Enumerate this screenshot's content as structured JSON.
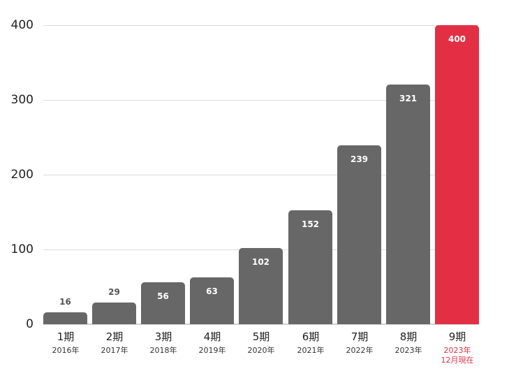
{
  "chart_data": {
    "type": "bar",
    "title": "",
    "xlabel": "",
    "ylabel": "",
    "ylim": [
      0,
      400
    ],
    "yticks": [
      0,
      100,
      200,
      300,
      400
    ],
    "grid": true,
    "categories": [
      "1期",
      "2期",
      "3期",
      "4期",
      "5期",
      "6期",
      "7期",
      "8期",
      "9期"
    ],
    "sublabels": [
      "2016年",
      "2017年",
      "2018年",
      "2019年",
      "2020年",
      "2021年",
      "2022年",
      "2023年",
      "2023年 12月現在"
    ],
    "values": [
      16,
      29,
      56,
      63,
      102,
      152,
      239,
      321,
      400
    ],
    "highlight_index": 8,
    "colors": {
      "bar": "#676767",
      "highlight": "#e32f44",
      "grid": "#dcdcdc"
    }
  },
  "axis": {
    "y": [
      "0",
      "100",
      "200",
      "300",
      "400"
    ]
  },
  "bars": [
    {
      "label": "1期",
      "sub": "2016年",
      "value": "16"
    },
    {
      "label": "2期",
      "sub": "2017年",
      "value": "29"
    },
    {
      "label": "3期",
      "sub": "2018年",
      "value": "56"
    },
    {
      "label": "4期",
      "sub": "2019年",
      "value": "63"
    },
    {
      "label": "5期",
      "sub": "2020年",
      "value": "102"
    },
    {
      "label": "6期",
      "sub": "2021年",
      "value": "152"
    },
    {
      "label": "7期",
      "sub": "2022年",
      "value": "239"
    },
    {
      "label": "8期",
      "sub": "2023年",
      "value": "321"
    },
    {
      "label": "9期",
      "sub": "2023年",
      "sub2": "12月現在",
      "value": "400"
    }
  ]
}
